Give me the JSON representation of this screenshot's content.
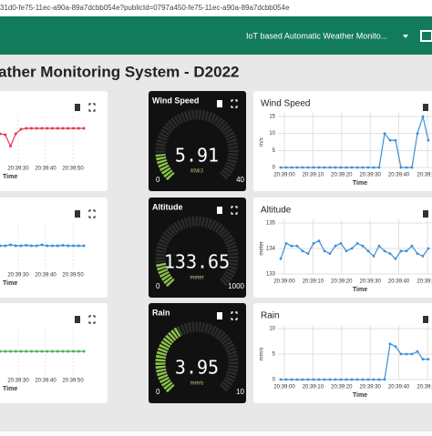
{
  "browser": {
    "url": "31d0-fe75-11ec-a90a-89a7dcbb054e?publicId=0797a450-fe75-11ec-a90a-89a7dcbb054e"
  },
  "header": {
    "title": "IoT based Automatic Weather Monito..."
  },
  "page": {
    "title": "ather Monitoring System - D2022"
  },
  "left_charts": [
    {
      "color": "#e53950",
      "ylim": [
        0,
        1
      ],
      "values": [
        0.62,
        0.6,
        0.35,
        0.62,
        0.72,
        0.74,
        0.74,
        0.74,
        0.74,
        0.74,
        0.74,
        0.74,
        0.74,
        0.74,
        0.74,
        0.74,
        0.74
      ],
      "x_ticks": [
        "20:39:30",
        "20:39:40",
        "20:39:50"
      ],
      "x_label": "Time"
    },
    {
      "color": "#3a8fd9",
      "ylim": [
        0,
        1
      ],
      "values": [
        0.5,
        0.5,
        0.52,
        0.5,
        0.5,
        0.51,
        0.5,
        0.5,
        0.52,
        0.5,
        0.5,
        0.5,
        0.51,
        0.5,
        0.5,
        0.5,
        0.5
      ],
      "x_ticks": [
        "20:39:30",
        "20:39:40",
        "20:39:50"
      ],
      "x_label": "Time"
    },
    {
      "color": "#4caf50",
      "ylim": [
        0,
        1
      ],
      "values": [
        0.5,
        0.5,
        0.5,
        0.5,
        0.5,
        0.5,
        0.5,
        0.5,
        0.5,
        0.5,
        0.5,
        0.5,
        0.5,
        0.5,
        0.5,
        0.5,
        0.5
      ],
      "x_ticks": [
        "20:39:30",
        "20:39:40",
        "20:39:50"
      ],
      "x_label": "Time"
    }
  ],
  "gauges": [
    {
      "title": "Wind Speed",
      "value": 5.91,
      "unit": "KM/J",
      "min": 0,
      "max": 40
    },
    {
      "title": "Altitude",
      "value": 133.65,
      "unit": "meter",
      "min": 0,
      "max": 1000
    },
    {
      "title": "Rain",
      "value": 3.95,
      "unit": "mm/s",
      "min": 0,
      "max": 10
    }
  ],
  "right_charts": [
    {
      "title": "Wind Speed",
      "y_label": "m/s",
      "ylim": [
        0,
        15
      ],
      "yticks": [
        0,
        5,
        10,
        15
      ],
      "color": "#3a8fd9",
      "values": [
        0,
        0,
        0,
        0,
        0,
        0,
        0,
        0,
        0,
        0,
        0,
        0,
        0,
        0,
        0,
        0,
        0,
        0,
        0,
        10,
        8,
        8,
        0,
        0,
        0,
        10,
        15,
        8
      ],
      "x_ticks": [
        "20:39:00",
        "20:39:10",
        "20:39:20",
        "20:39:30",
        "20:39:40",
        "20:39:50"
      ],
      "x_label": "Time"
    },
    {
      "title": "Altitude",
      "y_label": "meter",
      "ylim": [
        133,
        135
      ],
      "yticks": [
        133,
        134,
        135
      ],
      "color": "#3a8fd9",
      "values": [
        133.6,
        134.2,
        134.1,
        134.1,
        133.9,
        133.8,
        134.2,
        134.3,
        133.9,
        133.8,
        134.1,
        134.2,
        133.9,
        134.0,
        134.2,
        134.1,
        133.9,
        133.7,
        134.1,
        133.9,
        133.8,
        133.6,
        133.9,
        133.9,
        134.1,
        133.8,
        133.7,
        134.0
      ],
      "x_ticks": [
        "20:39:00",
        "20:39:10",
        "20:39:20",
        "20:39:30",
        "20:39:40",
        "20:39:50"
      ],
      "x_label": "Time"
    },
    {
      "title": "Rain",
      "y_label": "mm/s",
      "ylim": [
        0,
        10
      ],
      "yticks": [
        0,
        5,
        10
      ],
      "color": "#3a8fd9",
      "values": [
        0,
        0,
        0,
        0,
        0,
        0,
        0,
        0,
        0,
        0,
        0,
        0,
        0,
        0,
        0,
        0,
        0,
        0,
        0,
        0,
        7,
        6.5,
        5,
        5,
        5,
        5.5,
        4,
        4
      ],
      "x_ticks": [
        "20:39:00",
        "20:39:10",
        "20:39:20",
        "20:39:30",
        "20:39:40",
        "20:39:50"
      ],
      "x_label": "Time"
    }
  ]
}
